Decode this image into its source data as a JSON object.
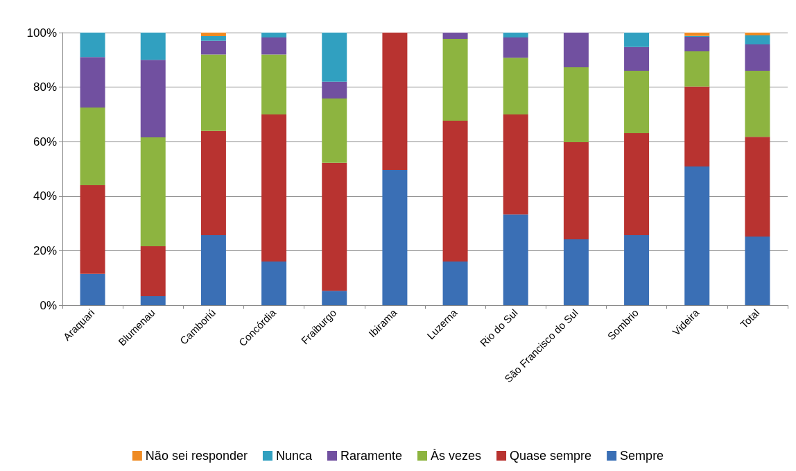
{
  "chart_data": {
    "type": "bar",
    "stacked": true,
    "categories": [
      "Araquari",
      "Blumenau",
      "Camboriú",
      "Concórdia",
      "Fraiburgo",
      "Ibirama",
      "Luzerna",
      "Rio do Sul",
      "São Francisco do Sul",
      "Sombrio",
      "Videira",
      "Total"
    ],
    "series": [
      {
        "name": "Sempre",
        "color": "#3a6fb5",
        "values": [
          11.5,
          3.3,
          25.7,
          16,
          5.3,
          49.6,
          16,
          33.3,
          24.2,
          25.7,
          50.9,
          25.2
        ]
      },
      {
        "name": "Quase sempre",
        "color": "#b83330",
        "values": [
          32.5,
          18.3,
          38.2,
          54,
          46.9,
          50.4,
          51.7,
          36.7,
          35.6,
          37.4,
          29.3,
          36.6
        ]
      },
      {
        "name": "Às vezes",
        "color": "#8db440",
        "values": [
          28.5,
          40,
          28.1,
          22,
          23.6,
          0,
          30,
          20.8,
          27.5,
          22.9,
          12.9,
          24.2
        ]
      },
      {
        "name": "Raramente",
        "color": "#7150a0",
        "values": [
          18.5,
          28.4,
          5,
          6.2,
          6.2,
          0,
          2.3,
          7.4,
          12.7,
          8.7,
          5.4,
          9.7
        ]
      },
      {
        "name": "Nunca",
        "color": "#31a0c0",
        "values": [
          9,
          10,
          1.7,
          1.8,
          18,
          0,
          0,
          1.8,
          0,
          5.3,
          0.3,
          3.3
        ]
      },
      {
        "name": "Não sei responder",
        "color": "#ef8a22",
        "values": [
          0,
          0,
          1.3,
          0,
          0,
          0,
          0,
          0,
          0,
          0,
          1.2,
          1
        ]
      }
    ],
    "ylim": [
      0,
      100
    ],
    "yticks": [
      {
        "value": 0,
        "label": "0%"
      },
      {
        "value": 20,
        "label": "20%"
      },
      {
        "value": 40,
        "label": "40%"
      },
      {
        "value": 60,
        "label": "60%"
      },
      {
        "value": 80,
        "label": "80%"
      },
      {
        "value": 100,
        "label": "100%"
      }
    ],
    "grid": "y",
    "legend": "bottom"
  }
}
